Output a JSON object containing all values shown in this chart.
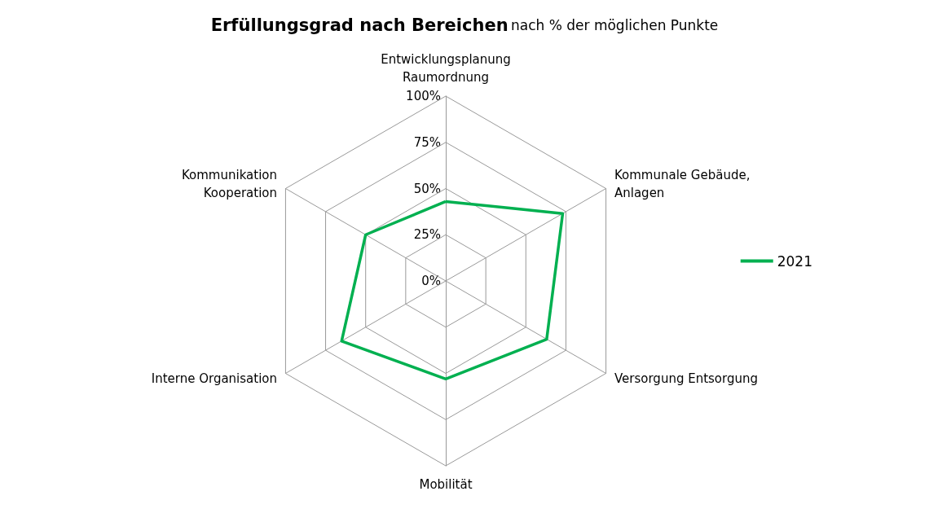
{
  "chart_data": {
    "type": "radar",
    "title": "Erfüllungsgrad nach Bereichen",
    "subtitle": "nach % der möglichen Punkte",
    "categories": [
      "Entwicklungsplanung\nRaumordnung",
      "Kommunale Gebäude,\nAnlagen",
      "Versorgung Entsorgung",
      "Mobilität",
      "Interne Organisation",
      "Kommunikation\nKooperation"
    ],
    "series": [
      {
        "name": "2021",
        "color": "#00b050",
        "values": [
          43,
          73,
          63,
          53,
          65,
          50
        ]
      }
    ],
    "ylim": [
      0,
      100
    ],
    "yticks": [
      {
        "value": 0,
        "label": "0%"
      },
      {
        "value": 25,
        "label": "25%"
      },
      {
        "value": 50,
        "label": "50%"
      },
      {
        "value": 75,
        "label": "75%"
      },
      {
        "value": 100,
        "label": "100%"
      }
    ],
    "legend": "right",
    "marker": "none",
    "line_style": "solid"
  }
}
